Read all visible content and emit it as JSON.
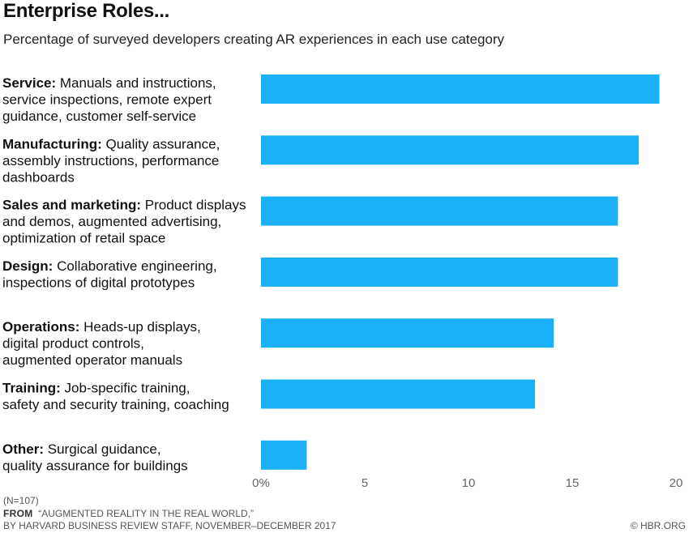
{
  "title": "Enterprise Roles...",
  "subtitle": "Percentage of surveyed developers creating AR experiences in each use category",
  "chart_data": {
    "type": "bar",
    "orientation": "horizontal",
    "categories": [
      {
        "name": "Service:",
        "lines": [
          "Manuals and instructions,",
          "service inspections, remote expert",
          "guidance, customer self-service"
        ]
      },
      {
        "name": "Manufacturing:",
        "lines": [
          "Quality assurance,",
          "assembly instructions, performance",
          "dashboards"
        ]
      },
      {
        "name": "Sales and marketing:",
        "lines": [
          "Product displays",
          "and demos, augmented advertising,",
          "optimization of retail space"
        ]
      },
      {
        "name": "Design:",
        "lines": [
          "Collaborative engineering,",
          "inspections of digital prototypes"
        ]
      },
      {
        "name": "Operations:",
        "lines": [
          "Heads-up displays,",
          "digital product controls,",
          "augmented operator manuals"
        ]
      },
      {
        "name": "Training:",
        "lines": [
          "Job-specific training,",
          "safety and security training, coaching"
        ]
      },
      {
        "name": "Other:",
        "lines": [
          "Surgical guidance,",
          "quality assurance for buildings"
        ]
      }
    ],
    "values": [
      19.2,
      18.2,
      17.2,
      17.2,
      14.1,
      13.2,
      2.2
    ],
    "xlim": [
      0,
      20
    ],
    "xticks": [
      0,
      5,
      10,
      15,
      20
    ],
    "xtick_labels": [
      "0%",
      "5",
      "10",
      "15",
      "20"
    ],
    "bar_color": "#1ab0f5",
    "grid": false,
    "legend": "none"
  },
  "footer": {
    "n": "(N=107)",
    "from_label": "FROM",
    "source": "“AUGMENTED REALITY IN THE REAL WORLD,”",
    "byline": "BY HARVARD BUSINESS REVIEW STAFF, NOVEMBER–DECEMBER 2017",
    "credit": "© HBR.ORG"
  }
}
